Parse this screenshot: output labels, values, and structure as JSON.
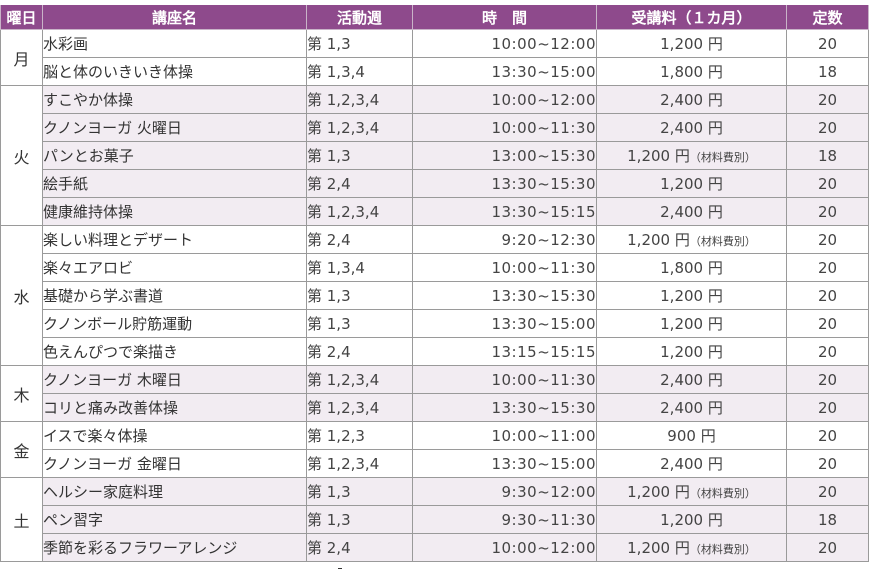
{
  "headers": {
    "day": "曜日",
    "course": "講座名",
    "week": "活動週",
    "time": "時　間",
    "fee": "受講料（１カ月）",
    "capacity": "定数"
  },
  "rows": [
    {
      "day": "月",
      "course": "水彩画",
      "week": "第 1,3",
      "time": "10:00~12:00",
      "fee": "1,200 円",
      "note": "",
      "capacity": "20"
    },
    {
      "day": "",
      "course": "脳と体のいきいき体操",
      "week": "第 1,3,4",
      "time": "13:30~15:00",
      "fee": "1,800 円",
      "note": "",
      "capacity": "18"
    },
    {
      "day": "火",
      "course": "すこやか体操",
      "week": "第 1,2,3,4",
      "time": "10:00~12:00",
      "fee": "2,400 円",
      "note": "",
      "capacity": "20"
    },
    {
      "day": "",
      "course": "クノンヨーガ 火曜日",
      "week": "第 1,2,3,4",
      "time": "10:00~11:30",
      "fee": "2,400 円",
      "note": "",
      "capacity": "20"
    },
    {
      "day": "",
      "course": "パンとお菓子",
      "week": "第 1,3",
      "time": "13:00~15:30",
      "fee": "1,200 円",
      "note": "（材料費別）",
      "capacity": "18"
    },
    {
      "day": "",
      "course": "絵手紙",
      "week": "第 2,4",
      "time": "13:30~15:30",
      "fee": "1,200 円",
      "note": "",
      "capacity": "20"
    },
    {
      "day": "",
      "course": "健康維持体操",
      "week": "第 1,2,3,4",
      "time": "13:30~15:15",
      "fee": "2,400 円",
      "note": "",
      "capacity": "20"
    },
    {
      "day": "水",
      "course": "楽しい料理とデザート",
      "week": "第 2,4",
      "time": "9:20~12:30",
      "fee": "1,200 円",
      "note": "（材料費別）",
      "capacity": "20"
    },
    {
      "day": "",
      "course": "楽々エアロビ",
      "week": "第 1,3,4",
      "time": "10:00~11:30",
      "fee": "1,800 円",
      "note": "",
      "capacity": "20"
    },
    {
      "day": "",
      "course": "基礎から学ぶ書道",
      "week": "第 1,3",
      "time": "13:30~15:30",
      "fee": "1,200 円",
      "note": "",
      "capacity": "20"
    },
    {
      "day": "",
      "course": "クノンボール貯筋運動",
      "week": "第 1,3",
      "time": "13:30~15:00",
      "fee": "1,200 円",
      "note": "",
      "capacity": "20"
    },
    {
      "day": "",
      "course": "色えんぴつで楽描き",
      "week": "第 2,4",
      "time": "13:15~15:15",
      "fee": "1,200 円",
      "note": "",
      "capacity": "20"
    },
    {
      "day": "木",
      "course": "クノンヨーガ 木曜日",
      "week": "第 1,2,3,4",
      "time": "10:00~11:30",
      "fee": "2,400 円",
      "note": "",
      "capacity": "20"
    },
    {
      "day": "",
      "course": "コリと痛み改善体操",
      "week": "第 1,2,3,4",
      "time": "13:30~15:30",
      "fee": "2,400 円",
      "note": "",
      "capacity": "20"
    },
    {
      "day": "金",
      "course": "イスで楽々体操",
      "week": "第 1,2,3",
      "time": "10:00~11:00",
      "fee": "900 円",
      "note": "",
      "capacity": "20"
    },
    {
      "day": "",
      "course": "クノンヨーガ 金曜日",
      "week": "第 1,2,3,4",
      "time": "13:30~15:00",
      "fee": "2,400 円",
      "note": "",
      "capacity": "20"
    },
    {
      "day": "土",
      "course": "ヘルシー家庭料理",
      "week": "第 1,3",
      "time": "9:30~12:00",
      "fee": "1,200 円",
      "note": "（材料費別）",
      "capacity": "20"
    },
    {
      "day": "",
      "course": "ペン習字",
      "week": "第 1,3",
      "time": "9:30~11:30",
      "fee": "1,200 円",
      "note": "",
      "capacity": "18"
    },
    {
      "day": "",
      "course": "季節を彩るフラワーアレンジ",
      "week": "第 2,4",
      "time": "10:00~12:00",
      "fee": "1,200 円",
      "note": "（材料費別）",
      "capacity": "20"
    }
  ]
}
